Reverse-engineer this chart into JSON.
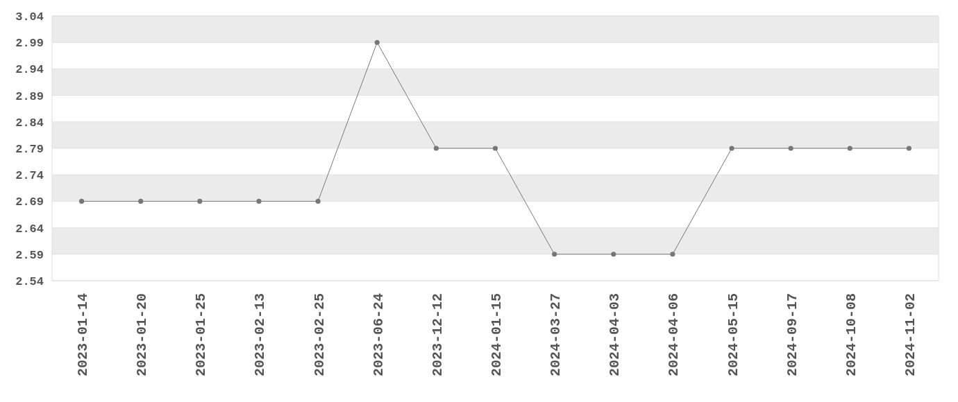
{
  "chart_data": {
    "type": "line",
    "categories": [
      "2023-01-14",
      "2023-01-20",
      "2023-01-25",
      "2023-02-13",
      "2023-02-25",
      "2023-06-24",
      "2023-12-12",
      "2024-01-15",
      "2024-03-27",
      "2024-04-03",
      "2024-04-06",
      "2024-05-15",
      "2024-09-17",
      "2024-10-08",
      "2024-11-02"
    ],
    "series": [
      {
        "color": "#777777",
        "values": [
          2.69,
          2.69,
          2.69,
          2.69,
          2.69,
          2.99,
          2.79,
          2.79,
          2.59,
          2.59,
          2.59,
          2.79,
          2.79,
          2.79,
          2.79
        ]
      }
    ],
    "ylim": [
      2.54,
      3.04
    ],
    "yticks": [
      2.54,
      2.59,
      2.64,
      2.69,
      2.74,
      2.79,
      2.84,
      2.89,
      2.94,
      2.99,
      3.04
    ],
    "grid": "y",
    "marker": "circle",
    "line_style": "solid"
  }
}
